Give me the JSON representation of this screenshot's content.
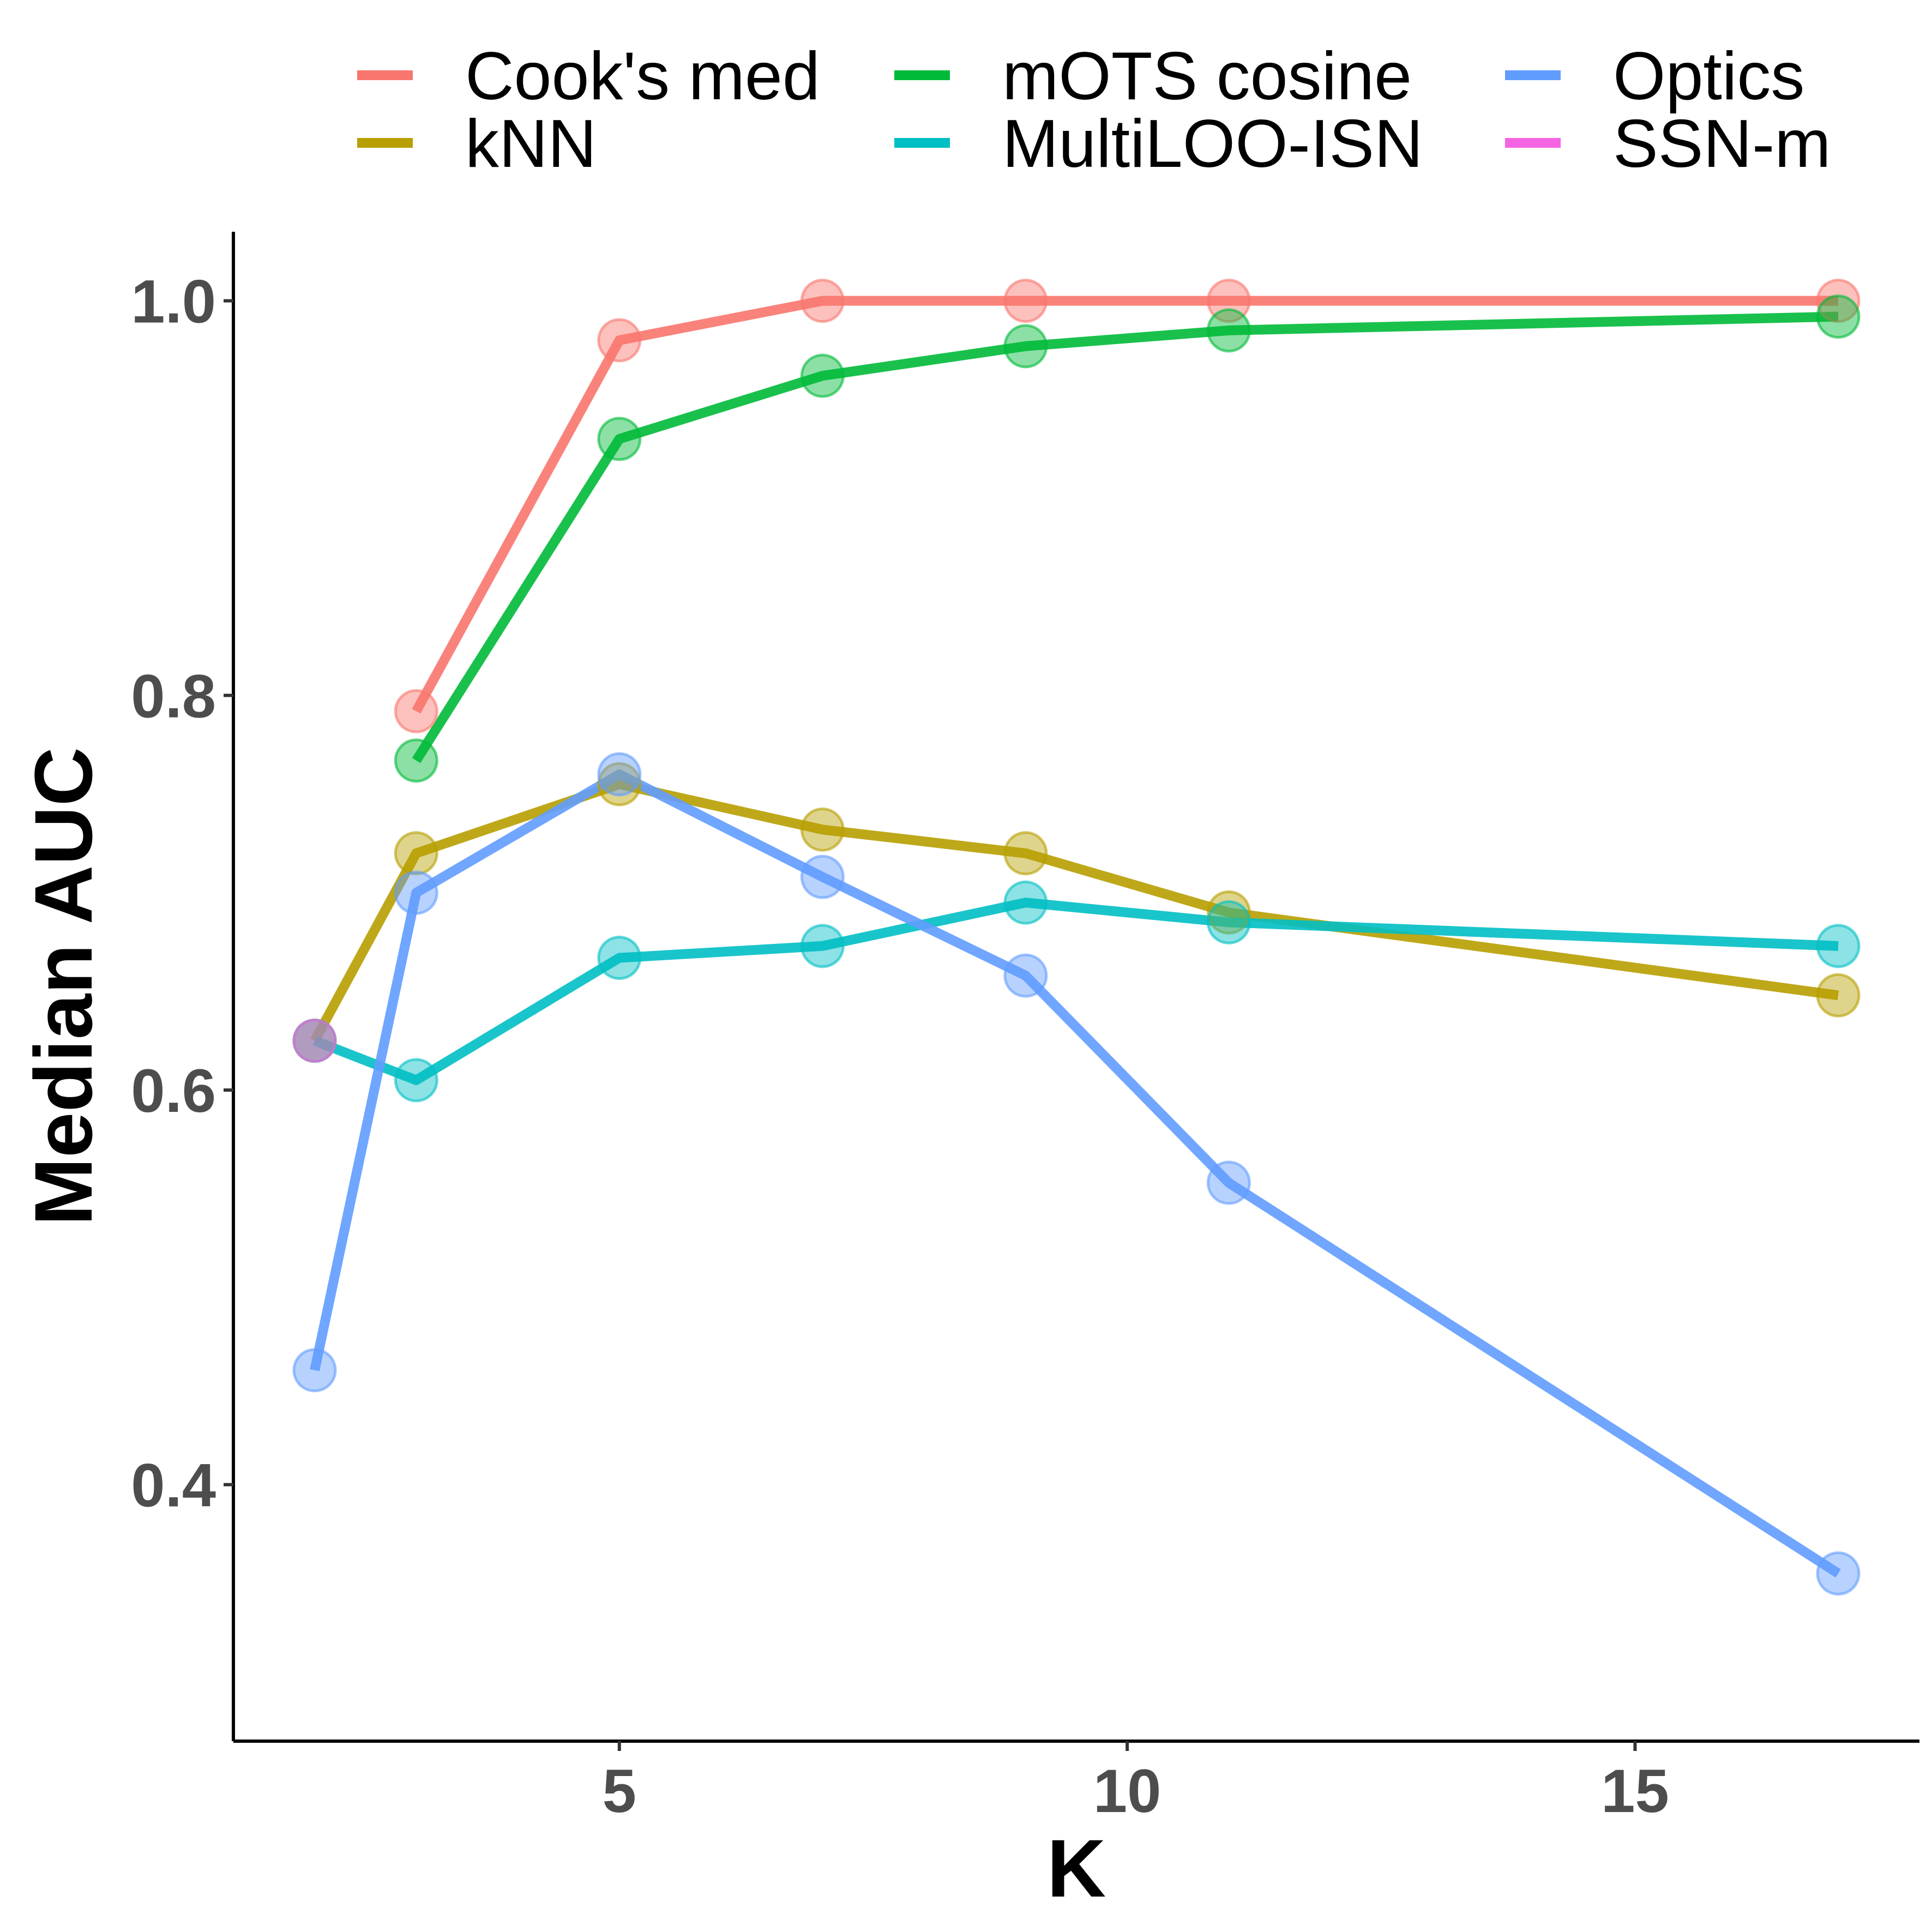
{
  "chart_data": {
    "type": "line",
    "xlabel": "K",
    "ylabel": "Median AUC",
    "xlim": [
      1.2,
      17.8
    ],
    "ylim": [
      0.27,
      1.035
    ],
    "x_ticks": [
      5,
      10,
      15
    ],
    "y_ticks": [
      0.4,
      0.6,
      0.8,
      1.0
    ],
    "x_tick_labels": [
      "5",
      "10",
      "15"
    ],
    "y_tick_labels": [
      "0.4",
      "0.6",
      "0.8",
      "1.0"
    ],
    "grid": false,
    "legend": "top",
    "series": [
      {
        "name": "Cook's med",
        "color": "#F8766D",
        "x": [
          3,
          5,
          7,
          9,
          11,
          17
        ],
        "y": [
          0.792,
          0.98,
          1.0,
          1.0,
          1.0,
          1.0
        ]
      },
      {
        "name": "kNN",
        "color": "#B79F00",
        "x": [
          2,
          3,
          5,
          7,
          9,
          11,
          17
        ],
        "y": [
          0.625,
          0.72,
          0.755,
          0.732,
          0.72,
          0.69,
          0.648
        ]
      },
      {
        "name": "mOTS cosine",
        "color": "#00BA38",
        "x": [
          3,
          5,
          7,
          9,
          11,
          17
        ],
        "y": [
          0.767,
          0.93,
          0.962,
          0.977,
          0.985,
          0.992
        ]
      },
      {
        "name": "MultiLOO-ISN",
        "color": "#00BFC4",
        "x": [
          2,
          3,
          5,
          7,
          9,
          11,
          17
        ],
        "y": [
          0.625,
          0.605,
          0.667,
          0.673,
          0.695,
          0.685,
          0.673
        ]
      },
      {
        "name": "Optics",
        "color": "#619CFF",
        "x": [
          2,
          3,
          5,
          7,
          9,
          11,
          17
        ],
        "y": [
          0.458,
          0.7,
          0.76,
          0.708,
          0.658,
          0.553,
          0.355
        ]
      },
      {
        "name": "SSN-m",
        "color": "#F564E3",
        "x": [
          2
        ],
        "y": [
          0.625
        ]
      }
    ]
  }
}
